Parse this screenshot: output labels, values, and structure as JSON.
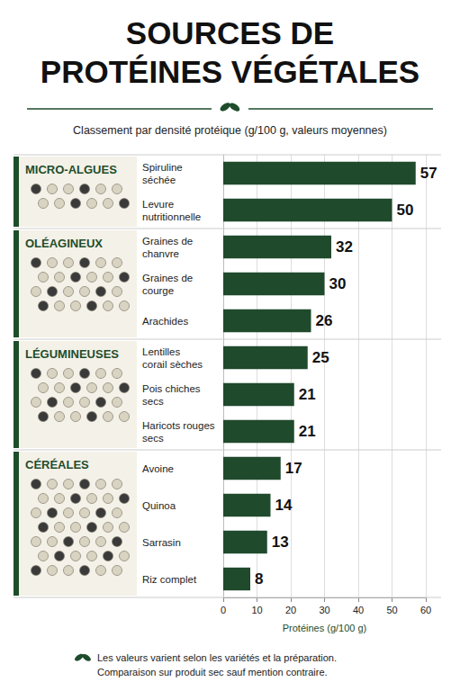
{
  "chart_data": {
    "type": "bar",
    "title": "SOURCES DE PROTÉINES VÉGÉTALES",
    "subtitle": "Classement par densité protéique (g/100 g, valeurs moyennes)",
    "x_label": "Protéines (g/100 g)",
    "categories": [
      "Spiruline séchée",
      "Levure nutritionnelle",
      "Graines de chanvre",
      "Graines de courge",
      "Arachides",
      "Lentilles corail sèches",
      "Pois chiches secs",
      "Haricots rouges secs",
      "Avoine",
      "Quinoa",
      "Sarrasin",
      "Riz complet"
    ],
    "values": [
      57,
      50,
      32,
      30,
      26,
      25,
      21,
      21,
      17,
      14,
      13,
      8
    ],
    "color": "#1f4a2c",
    "xlim": [
      0,
      60
    ],
    "xticks": [
      0,
      10,
      20,
      30,
      40,
      50,
      60
    ],
    "orientation": "horizontal",
    "grid": true,
    "data_labels": true,
    "groups": [
      {
        "name": "MICRO-ALGUES",
        "members": [
          "Spiruline séchée",
          "Levure nutritionnelle"
        ]
      },
      {
        "name": "OLÉAGINEUX",
        "members": [
          "Graines de chanvre",
          "Graines de courge",
          "Arachides"
        ]
      },
      {
        "name": "LÉGUMINEUSES",
        "members": [
          "Lentilles corail sèches",
          "Pois chiches secs",
          "Haricots rouges secs"
        ]
      },
      {
        "name": "CÉRÉALES",
        "members": [
          "Avoine",
          "Quinoa",
          "Sarrasin",
          "Riz complet"
        ]
      }
    ],
    "footnote": [
      "Les valeurs varient selon les variétés et la préparation.",
      "Comparaison sur produit sec sauf mention contraire."
    ]
  }
}
